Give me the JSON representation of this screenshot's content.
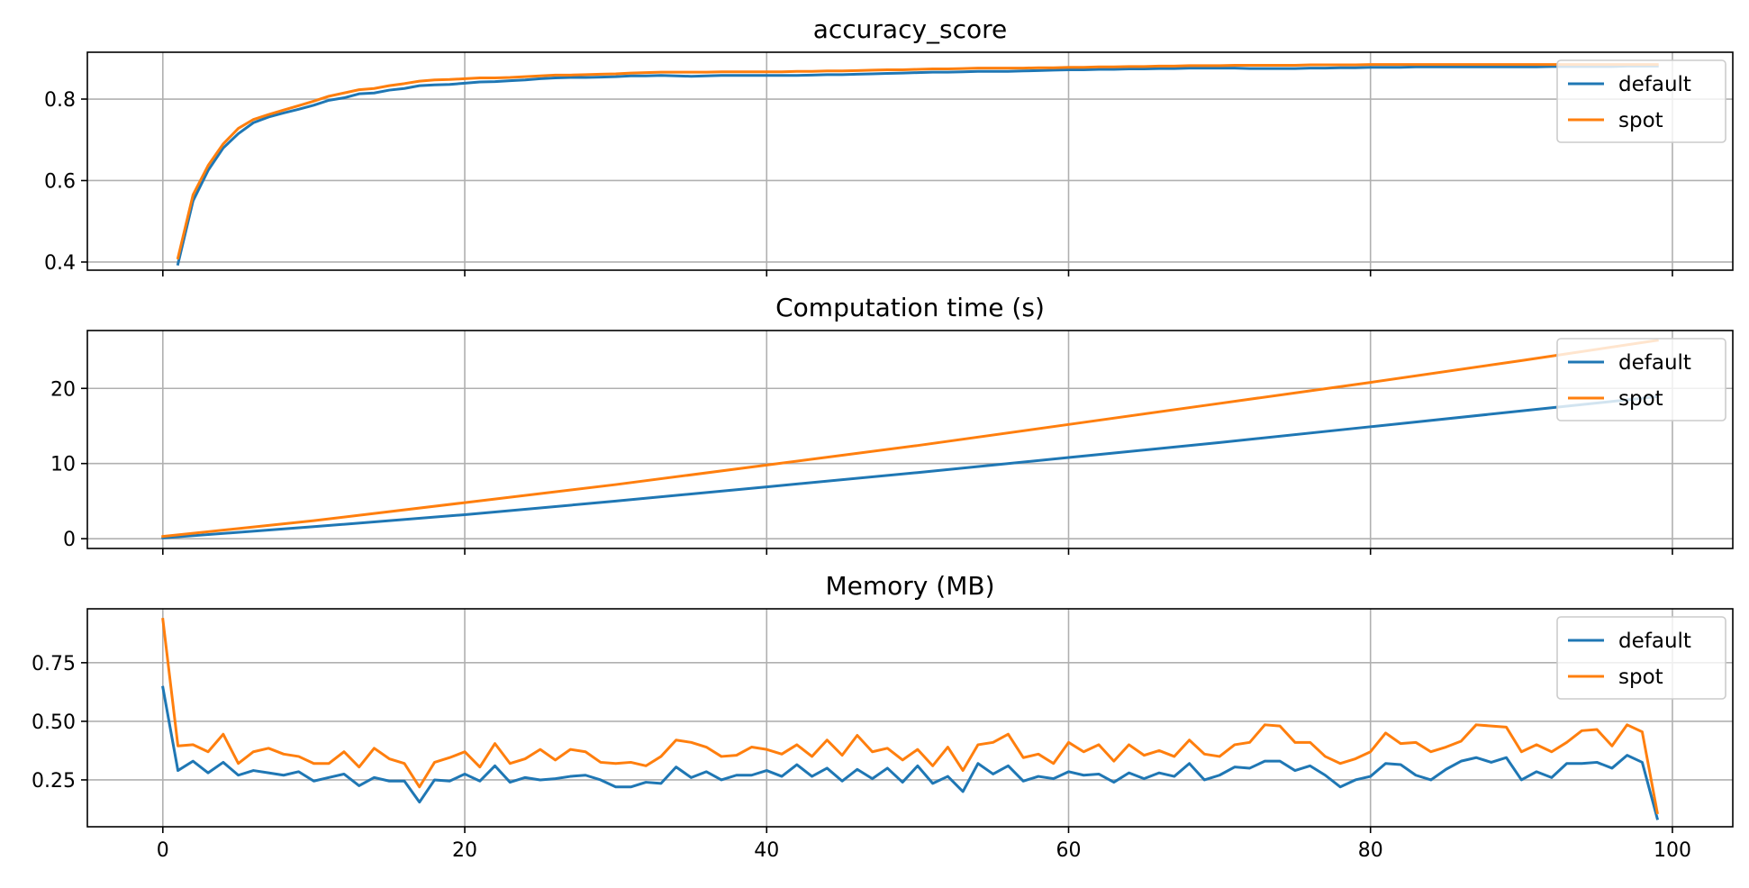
{
  "chart_data": [
    {
      "type": "line",
      "title": "accuracy_score",
      "xlabel": "",
      "ylabel": "",
      "xlim": [
        -5,
        104
      ],
      "ylim": [
        0.38,
        0.915
      ],
      "xticks": [
        0,
        20,
        40,
        60,
        80,
        100
      ],
      "show_xtick_labels": false,
      "yticks": [
        0.4,
        0.6,
        0.8
      ],
      "ytick_labels": [
        "0.4",
        "0.6",
        "0.8"
      ],
      "grid": true,
      "legend_position": "top-right",
      "series": [
        {
          "name": "default",
          "color": "#1f77b4",
          "x": [
            1,
            2,
            3,
            4,
            5,
            6,
            7,
            8,
            9,
            10,
            11,
            12,
            13,
            14,
            15,
            16,
            17,
            18,
            19,
            20,
            21,
            22,
            23,
            24,
            25,
            26,
            27,
            28,
            29,
            30,
            31,
            32,
            33,
            34,
            35,
            36,
            37,
            38,
            39,
            40,
            41,
            42,
            43,
            44,
            45,
            46,
            47,
            48,
            49,
            50,
            51,
            52,
            53,
            54,
            55,
            56,
            57,
            58,
            59,
            60,
            61,
            62,
            63,
            64,
            65,
            66,
            67,
            68,
            69,
            70,
            71,
            72,
            73,
            74,
            75,
            76,
            77,
            78,
            79,
            80,
            81,
            82,
            83,
            84,
            85,
            86,
            87,
            88,
            89,
            90,
            91,
            92,
            93,
            94,
            95,
            96,
            97,
            98,
            99
          ],
          "y": [
            0.395,
            0.55,
            0.625,
            0.68,
            0.715,
            0.742,
            0.756,
            0.766,
            0.775,
            0.785,
            0.797,
            0.803,
            0.813,
            0.815,
            0.822,
            0.826,
            0.833,
            0.835,
            0.836,
            0.839,
            0.842,
            0.843,
            0.845,
            0.847,
            0.85,
            0.852,
            0.853,
            0.853,
            0.854,
            0.855,
            0.857,
            0.857,
            0.858,
            0.857,
            0.856,
            0.857,
            0.858,
            0.858,
            0.858,
            0.858,
            0.858,
            0.858,
            0.859,
            0.86,
            0.86,
            0.861,
            0.862,
            0.863,
            0.864,
            0.865,
            0.866,
            0.866,
            0.867,
            0.868,
            0.868,
            0.868,
            0.869,
            0.87,
            0.871,
            0.872,
            0.872,
            0.873,
            0.873,
            0.874,
            0.874,
            0.875,
            0.875,
            0.876,
            0.876,
            0.876,
            0.876,
            0.875,
            0.875,
            0.875,
            0.875,
            0.876,
            0.876,
            0.877,
            0.877,
            0.878,
            0.878,
            0.878,
            0.879,
            0.879,
            0.879,
            0.879,
            0.879,
            0.879,
            0.879,
            0.879,
            0.879,
            0.88,
            0.88,
            0.88,
            0.88,
            0.88,
            0.881,
            0.881,
            0.881
          ]
        },
        {
          "name": "spot",
          "color": "#ff7f0e",
          "x": [
            1,
            2,
            3,
            4,
            5,
            6,
            7,
            8,
            9,
            10,
            11,
            12,
            13,
            14,
            15,
            16,
            17,
            18,
            19,
            20,
            21,
            22,
            23,
            24,
            25,
            26,
            27,
            28,
            29,
            30,
            31,
            32,
            33,
            34,
            35,
            36,
            37,
            38,
            39,
            40,
            41,
            42,
            43,
            44,
            45,
            46,
            47,
            48,
            49,
            50,
            51,
            52,
            53,
            54,
            55,
            56,
            57,
            58,
            59,
            60,
            61,
            62,
            63,
            64,
            65,
            66,
            67,
            68,
            69,
            70,
            71,
            72,
            73,
            74,
            75,
            76,
            77,
            78,
            79,
            80,
            81,
            82,
            83,
            84,
            85,
            86,
            87,
            88,
            89,
            90,
            91,
            92,
            93,
            94,
            95,
            96,
            97,
            98,
            99
          ],
          "y": [
            0.41,
            0.565,
            0.637,
            0.69,
            0.728,
            0.75,
            0.762,
            0.773,
            0.784,
            0.795,
            0.807,
            0.815,
            0.823,
            0.826,
            0.833,
            0.838,
            0.844,
            0.847,
            0.848,
            0.85,
            0.852,
            0.852,
            0.853,
            0.855,
            0.857,
            0.859,
            0.859,
            0.86,
            0.861,
            0.862,
            0.864,
            0.865,
            0.866,
            0.866,
            0.866,
            0.866,
            0.867,
            0.867,
            0.867,
            0.867,
            0.867,
            0.868,
            0.868,
            0.869,
            0.869,
            0.87,
            0.871,
            0.872,
            0.872,
            0.873,
            0.874,
            0.874,
            0.875,
            0.876,
            0.876,
            0.876,
            0.876,
            0.877,
            0.877,
            0.878,
            0.878,
            0.879,
            0.879,
            0.88,
            0.88,
            0.881,
            0.881,
            0.882,
            0.882,
            0.882,
            0.883,
            0.883,
            0.883,
            0.883,
            0.883,
            0.884,
            0.884,
            0.884,
            0.884,
            0.885,
            0.885,
            0.885,
            0.885,
            0.885,
            0.885,
            0.885,
            0.885,
            0.885,
            0.885,
            0.885,
            0.885,
            0.885,
            0.885,
            0.885,
            0.885,
            0.885,
            0.885,
            0.885,
            0.885
          ]
        }
      ]
    },
    {
      "type": "line",
      "title": "Computation time (s)",
      "xlabel": "",
      "ylabel": "",
      "xlim": [
        -5,
        104
      ],
      "ylim": [
        -1.3,
        27.7
      ],
      "xticks": [
        0,
        20,
        40,
        60,
        80,
        100
      ],
      "show_xtick_labels": false,
      "yticks": [
        0,
        10,
        20
      ],
      "ytick_labels": [
        "0",
        "10",
        "20"
      ],
      "grid": true,
      "legend_position": "top-right",
      "series": [
        {
          "name": "default",
          "color": "#1f77b4",
          "x": [
            0,
            10,
            20,
            30,
            40,
            50,
            60,
            70,
            80,
            90,
            99
          ],
          "y": [
            0.1,
            1.6,
            3.2,
            5.0,
            6.9,
            8.8,
            10.8,
            12.8,
            14.9,
            17.0,
            18.9
          ]
        },
        {
          "name": "spot",
          "color": "#ff7f0e",
          "x": [
            0,
            10,
            20,
            30,
            40,
            50,
            60,
            70,
            80,
            90,
            99
          ],
          "y": [
            0.3,
            2.4,
            4.8,
            7.2,
            9.8,
            12.4,
            15.2,
            18.0,
            20.8,
            23.7,
            26.4
          ]
        }
      ]
    },
    {
      "type": "line",
      "title": "Memory (MB)",
      "xlabel": "",
      "ylabel": "",
      "xlim": [
        -5,
        104
      ],
      "ylim": [
        0.05,
        0.98
      ],
      "xticks": [
        0,
        20,
        40,
        60,
        80,
        100
      ],
      "xtick_labels": [
        "0",
        "20",
        "40",
        "60",
        "80",
        "100"
      ],
      "show_xtick_labels": true,
      "yticks": [
        0.25,
        0.5,
        0.75
      ],
      "ytick_labels": [
        "0.25",
        "0.50",
        "0.75"
      ],
      "grid": true,
      "legend_position": "top-right",
      "series": [
        {
          "name": "default",
          "color": "#1f77b4",
          "x": [
            0,
            1,
            2,
            3,
            4,
            5,
            6,
            7,
            8,
            9,
            10,
            11,
            12,
            13,
            14,
            15,
            16,
            17,
            18,
            19,
            20,
            21,
            22,
            23,
            24,
            25,
            26,
            27,
            28,
            29,
            30,
            31,
            32,
            33,
            34,
            35,
            36,
            37,
            38,
            39,
            40,
            41,
            42,
            43,
            44,
            45,
            46,
            47,
            48,
            49,
            50,
            51,
            52,
            53,
            54,
            55,
            56,
            57,
            58,
            59,
            60,
            61,
            62,
            63,
            64,
            65,
            66,
            67,
            68,
            69,
            70,
            71,
            72,
            73,
            74,
            75,
            76,
            77,
            78,
            79,
            80,
            81,
            82,
            83,
            84,
            85,
            86,
            87,
            88,
            89,
            90,
            91,
            92,
            93,
            94,
            95,
            96,
            97,
            98,
            99
          ],
          "y": [
            0.645,
            0.29,
            0.33,
            0.28,
            0.325,
            0.27,
            0.29,
            0.28,
            0.27,
            0.285,
            0.245,
            0.26,
            0.275,
            0.225,
            0.26,
            0.245,
            0.245,
            0.155,
            0.25,
            0.245,
            0.275,
            0.245,
            0.31,
            0.24,
            0.26,
            0.25,
            0.255,
            0.265,
            0.27,
            0.25,
            0.22,
            0.22,
            0.24,
            0.235,
            0.305,
            0.26,
            0.285,
            0.25,
            0.27,
            0.27,
            0.29,
            0.265,
            0.315,
            0.265,
            0.3,
            0.245,
            0.295,
            0.255,
            0.3,
            0.24,
            0.31,
            0.235,
            0.265,
            0.2,
            0.32,
            0.275,
            0.31,
            0.245,
            0.265,
            0.255,
            0.285,
            0.27,
            0.275,
            0.24,
            0.28,
            0.255,
            0.28,
            0.265,
            0.32,
            0.25,
            0.27,
            0.305,
            0.3,
            0.33,
            0.33,
            0.29,
            0.31,
            0.27,
            0.22,
            0.25,
            0.265,
            0.32,
            0.315,
            0.27,
            0.25,
            0.295,
            0.33,
            0.345,
            0.325,
            0.345,
            0.25,
            0.285,
            0.26,
            0.32,
            0.32,
            0.325,
            0.3,
            0.355,
            0.325,
            0.085
          ]
        },
        {
          "name": "spot",
          "color": "#ff7f0e",
          "x": [
            0,
            1,
            2,
            3,
            4,
            5,
            6,
            7,
            8,
            9,
            10,
            11,
            12,
            13,
            14,
            15,
            16,
            17,
            18,
            19,
            20,
            21,
            22,
            23,
            24,
            25,
            26,
            27,
            28,
            29,
            30,
            31,
            32,
            33,
            34,
            35,
            36,
            37,
            38,
            39,
            40,
            41,
            42,
            43,
            44,
            45,
            46,
            47,
            48,
            49,
            50,
            51,
            52,
            53,
            54,
            55,
            56,
            57,
            58,
            59,
            60,
            61,
            62,
            63,
            64,
            65,
            66,
            67,
            68,
            69,
            70,
            71,
            72,
            73,
            74,
            75,
            76,
            77,
            78,
            79,
            80,
            81,
            82,
            83,
            84,
            85,
            86,
            87,
            88,
            89,
            90,
            91,
            92,
            93,
            94,
            95,
            96,
            97,
            98,
            99
          ],
          "y": [
            0.935,
            0.395,
            0.4,
            0.37,
            0.445,
            0.32,
            0.37,
            0.385,
            0.36,
            0.35,
            0.32,
            0.32,
            0.37,
            0.305,
            0.385,
            0.34,
            0.32,
            0.22,
            0.325,
            0.345,
            0.37,
            0.305,
            0.405,
            0.32,
            0.34,
            0.38,
            0.335,
            0.38,
            0.37,
            0.325,
            0.32,
            0.325,
            0.31,
            0.35,
            0.42,
            0.41,
            0.39,
            0.35,
            0.355,
            0.39,
            0.38,
            0.36,
            0.4,
            0.35,
            0.42,
            0.355,
            0.44,
            0.37,
            0.385,
            0.335,
            0.38,
            0.31,
            0.39,
            0.29,
            0.4,
            0.41,
            0.445,
            0.345,
            0.36,
            0.32,
            0.41,
            0.37,
            0.4,
            0.33,
            0.4,
            0.355,
            0.375,
            0.35,
            0.42,
            0.36,
            0.35,
            0.4,
            0.41,
            0.485,
            0.48,
            0.41,
            0.41,
            0.35,
            0.32,
            0.34,
            0.37,
            0.45,
            0.405,
            0.41,
            0.37,
            0.39,
            0.415,
            0.485,
            0.48,
            0.475,
            0.37,
            0.4,
            0.37,
            0.41,
            0.46,
            0.465,
            0.395,
            0.485,
            0.455,
            0.11
          ]
        }
      ]
    }
  ]
}
